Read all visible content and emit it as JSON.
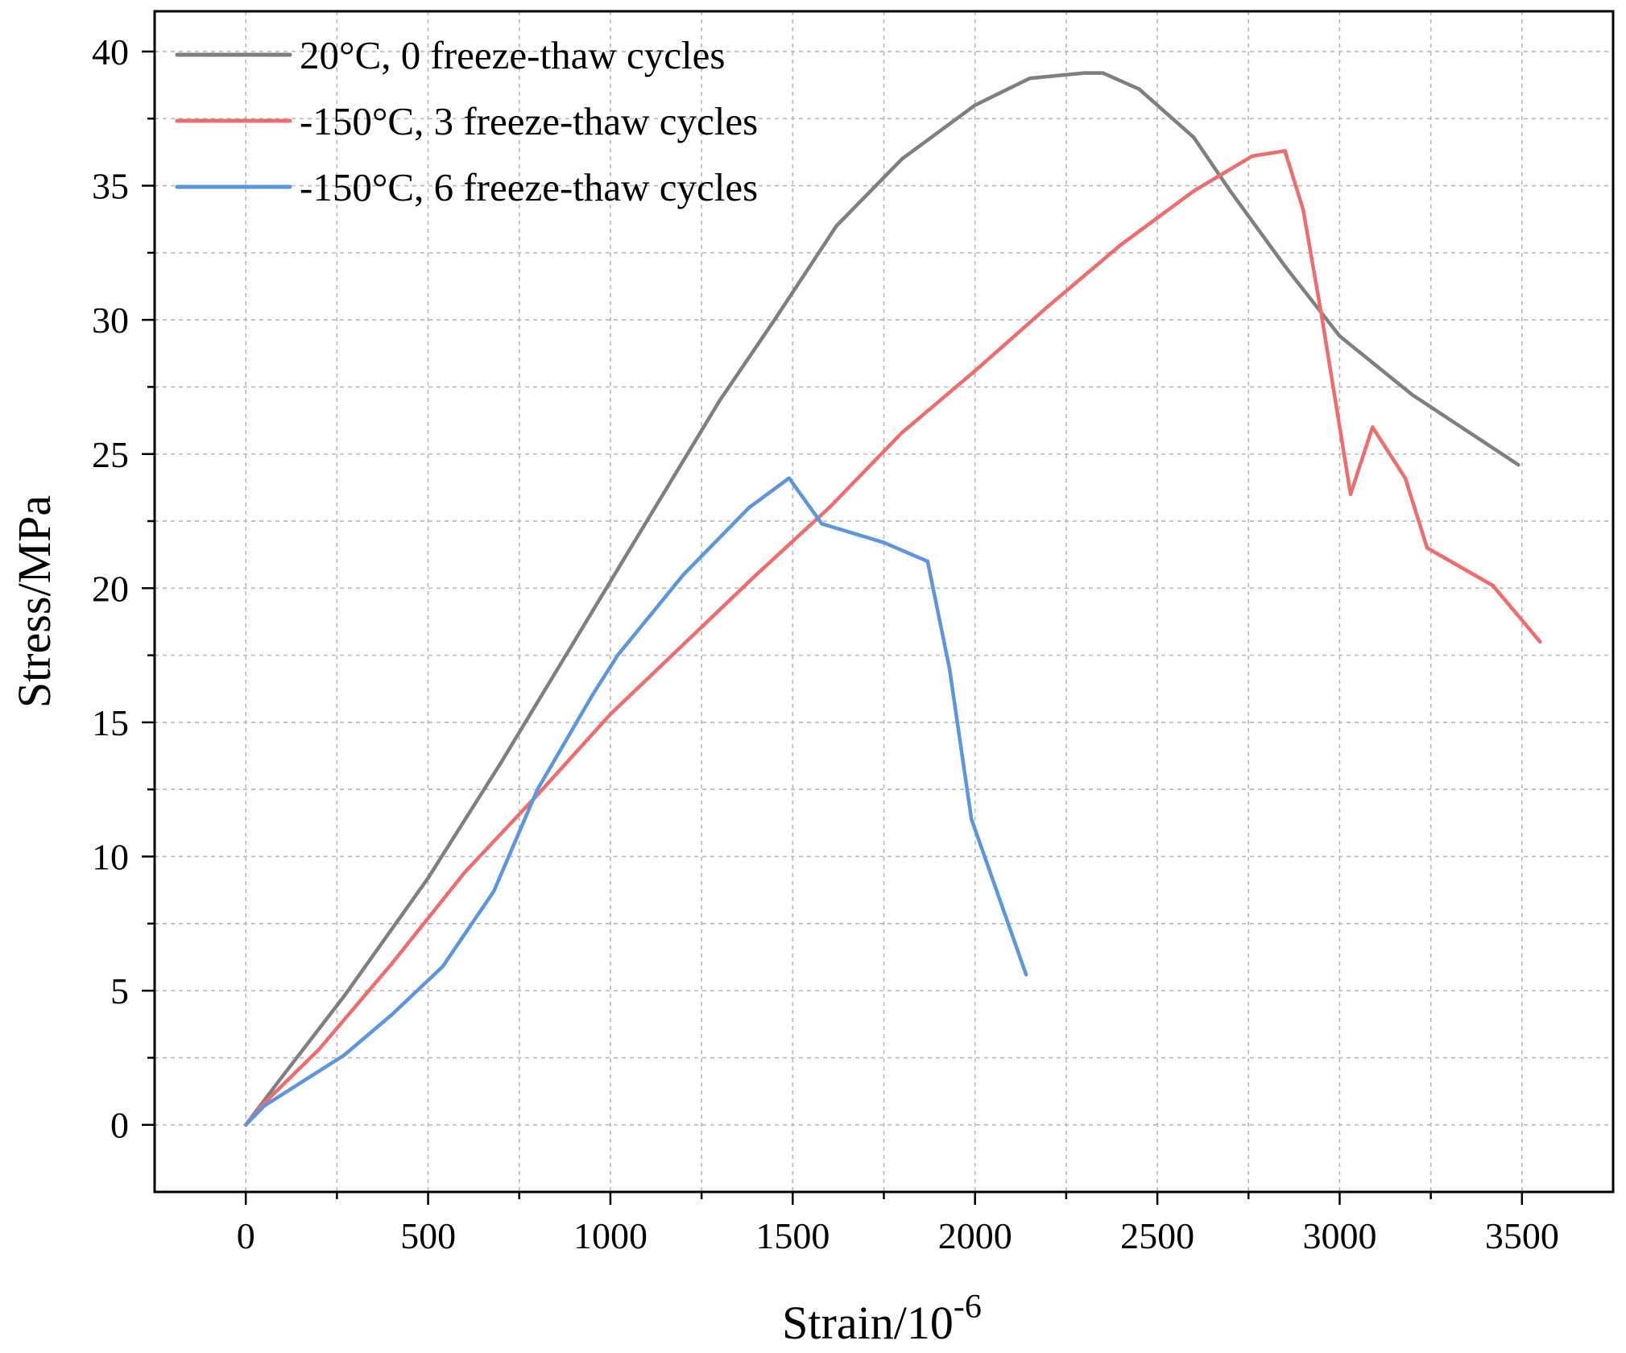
{
  "chart_data": {
    "type": "line",
    "title": "",
    "xlabel": "Strain/10",
    "xlabel_superscript": "-6",
    "ylabel": "Stress/MPa",
    "xlim": [
      -250,
      3750
    ],
    "ylim": [
      -2.5,
      41.5
    ],
    "xticks": [
      0,
      500,
      1000,
      1500,
      2000,
      2500,
      3000,
      3500
    ],
    "xtick_labels": [
      "0",
      "500",
      "1000",
      "1500",
      "2000",
      "2500",
      "3000",
      "3500"
    ],
    "yticks": [
      0,
      5,
      10,
      15,
      20,
      25,
      30,
      35,
      40
    ],
    "ytick_labels": [
      "0",
      "5",
      "10",
      "15",
      "20",
      "25",
      "30",
      "35",
      "40"
    ],
    "grid": true,
    "legend_position": "top-left",
    "series": [
      {
        "name": " 20°C, 0 freeze-thaw cycles",
        "color": "#7f7f7f",
        "x": [
          0,
          100,
          270,
          500,
          700,
          900,
          1100,
          1300,
          1450,
          1620,
          1800,
          2000,
          2150,
          2300,
          2350,
          2450,
          2600,
          2700,
          2850,
          3000,
          3200,
          3490
        ],
        "y": [
          0,
          1.8,
          4.8,
          9.2,
          13.5,
          18.0,
          22.5,
          27.0,
          30.0,
          33.5,
          36.0,
          38.0,
          39.0,
          39.2,
          39.2,
          38.6,
          36.8,
          34.8,
          32.0,
          29.4,
          27.2,
          24.6
        ]
      },
      {
        "name": "-150°C, 3 freeze-thaw cycles",
        "color": "#f06b6b",
        "x": [
          0,
          50,
          200,
          400,
          600,
          800,
          1000,
          1200,
          1400,
          1600,
          1800,
          2000,
          2200,
          2400,
          2600,
          2760,
          2850,
          2900,
          2950,
          3030,
          3090,
          3180,
          3240,
          3420,
          3550
        ],
        "y": [
          0,
          0.8,
          2.8,
          6.0,
          9.4,
          12.3,
          15.3,
          17.9,
          20.5,
          23.0,
          25.8,
          28.1,
          30.5,
          32.8,
          34.8,
          36.1,
          36.3,
          34.1,
          30.2,
          23.5,
          26.0,
          24.1,
          21.5,
          20.1,
          18.0
        ]
      },
      {
        "name": "-150°C, 6 freeze-thaw cycles",
        "color": "#5b95e0",
        "x": [
          0,
          50,
          270,
          400,
          540,
          680,
          800,
          950,
          1020,
          1200,
          1380,
          1490,
          1580,
          1750,
          1870,
          1930,
          1990,
          2140
        ],
        "y": [
          0,
          0.7,
          2.6,
          4.1,
          5.9,
          8.7,
          12.5,
          16.0,
          17.5,
          20.5,
          23.0,
          24.1,
          22.4,
          21.7,
          21.0,
          17.0,
          11.4,
          5.6
        ]
      }
    ]
  }
}
